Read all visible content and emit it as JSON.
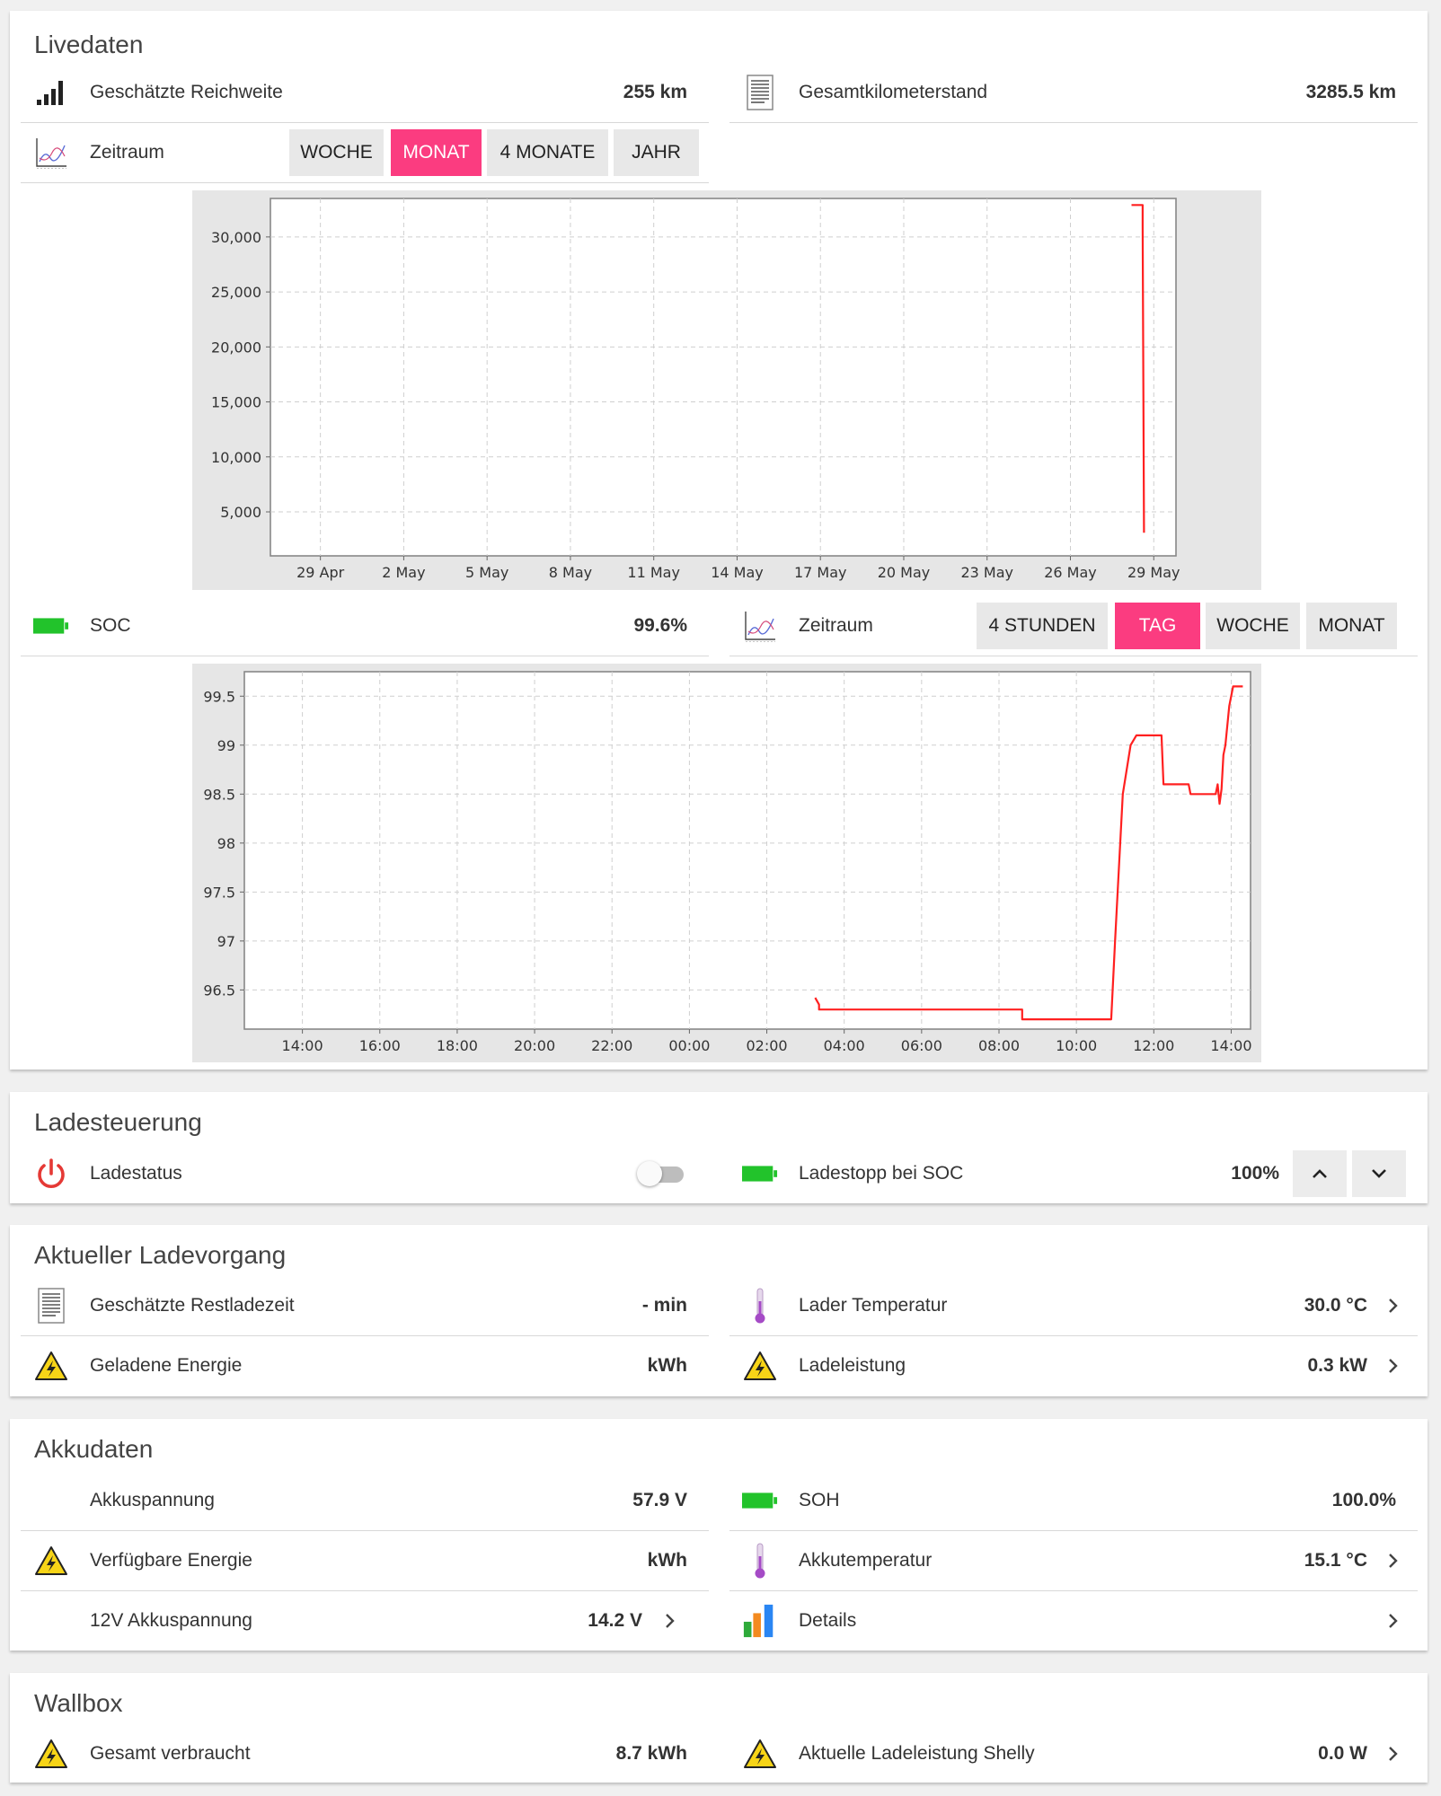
{
  "livedaten": {
    "title": "Livedaten",
    "range_label": "Geschätzte Reichweite",
    "range_value": "255 km",
    "odometer_label": "Gesamtkilometerstand",
    "odometer_value": "3285.5 km",
    "period_label": "Zeitraum",
    "period_buttons": [
      "WOCHE",
      "MONAT",
      "4 MONATE",
      "JAHR"
    ],
    "period_active": "MONAT",
    "soc_label": "SOC",
    "soc_value": "99.6%",
    "period2_label": "Zeitraum",
    "period2_buttons": [
      "4 STUNDEN",
      "TAG",
      "WOCHE",
      "MONAT"
    ],
    "period2_active": "TAG"
  },
  "chart_data": [
    {
      "type": "line",
      "title": "",
      "xlabel": "",
      "ylabel": "",
      "x_ticks": [
        "29 Apr",
        "2 May",
        "5 May",
        "8 May",
        "11 May",
        "14 May",
        "17 May",
        "20 May",
        "23 May",
        "26 May",
        "29 May"
      ],
      "y_ticks": [
        "5,000",
        "10,000",
        "15,000",
        "20,000",
        "25,000",
        "30,000"
      ],
      "xlim": [
        -1.8,
        30.8
      ],
      "ylim": [
        1000,
        33500
      ],
      "grid": true,
      "color": "#ff2020",
      "points": [
        [
          29.2,
          32900
        ],
        [
          29.6,
          32900
        ],
        [
          29.6,
          31000
        ],
        [
          29.65,
          3100
        ]
      ]
    },
    {
      "type": "line",
      "title": "",
      "xlabel": "",
      "ylabel": "",
      "x_ticks": [
        "14:00",
        "16:00",
        "18:00",
        "20:00",
        "22:00",
        "00:00",
        "02:00",
        "04:00",
        "06:00",
        "08:00",
        "10:00",
        "12:00",
        "14:00"
      ],
      "y_ticks": [
        "96.5",
        "97",
        "97.5",
        "98",
        "98.5",
        "99",
        "99.5"
      ],
      "xlim": [
        12.5,
        38.5
      ],
      "ylim": [
        96.1,
        99.75
      ],
      "grid": true,
      "color": "#ff2020",
      "points": [
        [
          27.25,
          96.42
        ],
        [
          27.35,
          96.35
        ],
        [
          27.35,
          96.3
        ],
        [
          32.6,
          96.3
        ],
        [
          32.6,
          96.2
        ],
        [
          34.9,
          96.2
        ],
        [
          35.0,
          97.0
        ],
        [
          35.2,
          98.5
        ],
        [
          35.4,
          99.0
        ],
        [
          35.55,
          99.1
        ],
        [
          36.2,
          99.1
        ],
        [
          36.25,
          98.6
        ],
        [
          36.9,
          98.6
        ],
        [
          36.95,
          98.5
        ],
        [
          37.6,
          98.5
        ],
        [
          37.65,
          98.6
        ],
        [
          37.7,
          98.4
        ],
        [
          37.75,
          98.55
        ],
        [
          37.8,
          98.9
        ],
        [
          37.85,
          99.0
        ],
        [
          37.95,
          99.4
        ],
        [
          38.05,
          99.6
        ],
        [
          38.3,
          99.6
        ]
      ]
    }
  ],
  "ladesteuerung": {
    "title": "Ladesteuerung",
    "status_label": "Ladestatus",
    "stop_label": "Ladestopp bei SOC",
    "stop_value": "100%"
  },
  "aktueller": {
    "title": "Aktueller Ladevorgang",
    "rows": [
      {
        "label": "Geschätzte Restladezeit",
        "value": "- min"
      },
      {
        "label": "Lader Temperatur",
        "value": "30.0 °C"
      },
      {
        "label": "Geladene Energie",
        "value": "kWh"
      },
      {
        "label": "Ladeleistung",
        "value": "0.3 kW"
      }
    ]
  },
  "akkudaten": {
    "title": "Akkudaten",
    "rows": [
      {
        "label": "Akkuspannung",
        "value": "57.9 V"
      },
      {
        "label": "SOH",
        "value": "100.0%"
      },
      {
        "label": "Verfügbare Energie",
        "value": "kWh"
      },
      {
        "label": "Akkutemperatur",
        "value": "15.1 °C"
      },
      {
        "label": "12V Akkuspannung",
        "value": "14.2 V"
      },
      {
        "label": "Details",
        "value": ""
      }
    ]
  },
  "wallbox": {
    "title": "Wallbox",
    "rows": [
      {
        "label": "Gesamt verbraucht",
        "value": "8.7 kWh"
      },
      {
        "label": "Aktuelle Ladeleistung Shelly",
        "value": "0.0 W"
      }
    ]
  },
  "colors": {
    "accent": "#fb3c80",
    "battery": "#22c32b",
    "warning": "#f7d417",
    "power_icon": "#e53935",
    "thermometer": "#a54bc6",
    "chart_line": "#ff2020"
  },
  "icons": [
    "signal-bars-icon",
    "document-icon",
    "chart-icon",
    "battery-icon",
    "power-icon",
    "warning-icon",
    "thermometer-icon",
    "bar-chart-icon",
    "chevron-right-icon",
    "chevron-up-icon",
    "chevron-down-icon"
  ]
}
